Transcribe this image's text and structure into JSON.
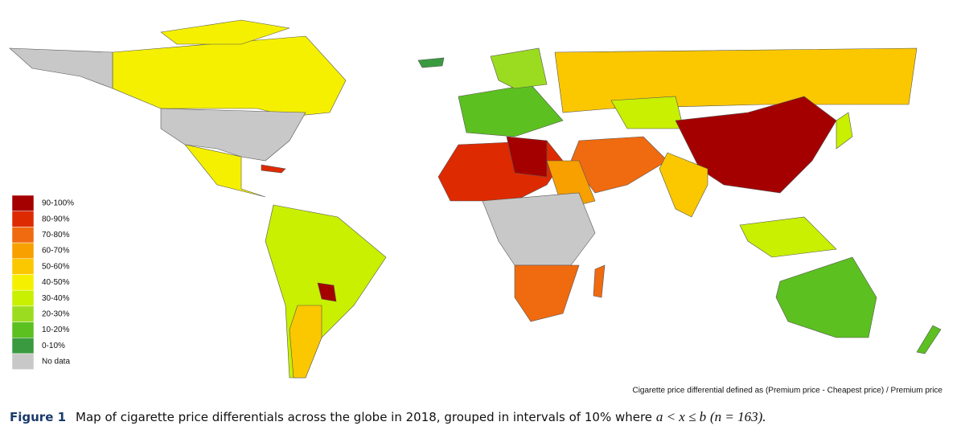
{
  "figure": {
    "legend": [
      {
        "label": "90-100%",
        "color": "#a50000"
      },
      {
        "label": "80-90%",
        "color": "#dd2a00"
      },
      {
        "label": "70-80%",
        "color": "#f06a10"
      },
      {
        "label": "60-70%",
        "color": "#f7a000"
      },
      {
        "label": "50-60%",
        "color": "#fbc800"
      },
      {
        "label": "40-50%",
        "color": "#f5f000"
      },
      {
        "label": "30-40%",
        "color": "#c8f000"
      },
      {
        "label": "20-30%",
        "color": "#9cdc20"
      },
      {
        "label": "10-20%",
        "color": "#5cc020"
      },
      {
        "label": "0-10%",
        "color": "#3a9a40"
      },
      {
        "label": "No data",
        "color": "#c8c8c8"
      }
    ],
    "note": "Cigarette price differential defined as (Premium price - Cheapest price) / Premium price",
    "caption": {
      "label": "Figure 1",
      "text": "Map of cigarette price differentials across the globe in 2018, grouped in intervals of 10% where",
      "condition": "a < x ≤ b",
      "count": "(n = 163)."
    }
  }
}
